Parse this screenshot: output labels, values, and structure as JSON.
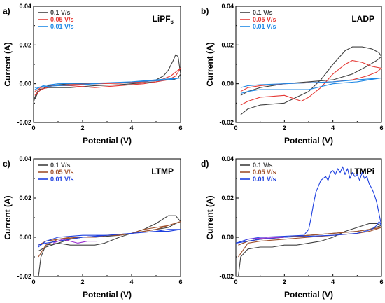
{
  "chart_data": [
    {
      "panel": "a)",
      "type": "line",
      "inset_label": "LiPF",
      "inset_label_sub": "6",
      "xlabel": "Potential (V)",
      "ylabel": "Current (A)",
      "xlim": [
        0,
        6
      ],
      "ylim": [
        -0.02,
        0.04
      ],
      "x_ticks": [
        "0",
        "2",
        "4",
        "6"
      ],
      "y_ticks": [
        "-0.02",
        "0.00",
        "0.02",
        "0.04"
      ],
      "legend_position": "top-left",
      "series": [
        {
          "name": "0.1 V/s",
          "color": "#404040",
          "x": [
            0.05,
            0.2,
            0.6,
            1.5,
            2.5,
            3.5,
            4.5,
            5.0,
            5.3,
            5.5,
            5.7,
            5.8,
            5.9,
            6.0,
            5.9,
            5.7,
            5.4,
            5.0,
            4.5,
            3.5,
            2.5,
            1.5,
            0.6,
            0.2,
            0.05,
            0.0
          ],
          "y": [
            -0.008,
            -0.004,
            -0.001,
            0.0,
            0.0,
            0.0005,
            0.001,
            0.002,
            0.004,
            0.007,
            0.012,
            0.015,
            0.014,
            0.005,
            0.003,
            0.002,
            0.002,
            0.001,
            0.0005,
            -0.0005,
            -0.001,
            -0.002,
            -0.002,
            -0.003,
            -0.007,
            -0.01
          ]
        },
        {
          "name": "0.05 V/s",
          "color": "#e53935",
          "x": [
            0.05,
            0.3,
            0.8,
            1.5,
            2.5,
            3.5,
            4.5,
            5.2,
            5.6,
            5.9,
            6.0,
            5.8,
            5.5,
            5.0,
            4.5,
            3.5,
            2.5,
            1.5,
            0.8,
            0.3,
            0.05
          ],
          "y": [
            -0.006,
            -0.003,
            -0.001,
            -0.0005,
            0.0,
            0.0002,
            0.001,
            0.002,
            0.004,
            0.007,
            0.008,
            0.004,
            0.002,
            0.001,
            0.0,
            -0.001,
            -0.002,
            -0.001,
            -0.001,
            -0.002,
            -0.004
          ]
        },
        {
          "name": "0.01 V/s",
          "color": "#1e88e5",
          "x": [
            0.05,
            0.4,
            1.0,
            2.0,
            3.0,
            4.0,
            5.0,
            5.5,
            6.0,
            5.5,
            5.0,
            4.0,
            3.0,
            2.0,
            1.0,
            0.4,
            0.05
          ],
          "y": [
            -0.003,
            -0.001,
            0.0,
            0.0002,
            0.0005,
            0.001,
            0.0015,
            0.002,
            0.003,
            0.0025,
            0.002,
            0.001,
            0.0005,
            -0.0005,
            -0.001,
            -0.0015,
            -0.002
          ]
        }
      ]
    },
    {
      "panel": "b)",
      "type": "line",
      "inset_label": "LADP",
      "inset_label_sub": "",
      "xlabel": "Potential (V)",
      "ylabel": "Current (A)",
      "xlim": [
        0,
        6
      ],
      "ylim": [
        -0.02,
        0.04
      ],
      "x_ticks": [
        "0",
        "2",
        "4",
        "6"
      ],
      "y_ticks": [
        "-0.02",
        "0.00",
        "0.02",
        "0.04"
      ],
      "legend_position": "top-left",
      "series": [
        {
          "name": "0.1 V/s",
          "color": "#404040",
          "x": [
            0.2,
            0.5,
            1.0,
            2.0,
            3.0,
            3.5,
            4.0,
            4.5,
            4.8,
            5.2,
            5.6,
            5.9,
            6.0,
            5.8,
            5.4,
            4.8,
            4.0,
            3.0,
            2.5,
            2.0,
            1.5,
            1.0,
            0.5,
            0.2
          ],
          "y": [
            -0.016,
            -0.013,
            -0.011,
            -0.01,
            -0.004,
            0.002,
            0.01,
            0.017,
            0.019,
            0.019,
            0.018,
            0.016,
            0.014,
            0.012,
            0.009,
            0.005,
            0.002,
            0.001,
            0.0005,
            0.0,
            -0.001,
            -0.002,
            -0.004,
            -0.006
          ]
        },
        {
          "name": "0.05 V/s",
          "color": "#e53935",
          "x": [
            0.2,
            0.5,
            1.0,
            2.0,
            2.7,
            3.0,
            3.5,
            4.0,
            4.5,
            4.8,
            5.2,
            5.6,
            6.0,
            5.8,
            5.4,
            4.8,
            4.0,
            3.0,
            2.0,
            1.0,
            0.5,
            0.2
          ],
          "y": [
            -0.011,
            -0.009,
            -0.007,
            -0.006,
            -0.009,
            -0.007,
            -0.002,
            0.005,
            0.01,
            0.012,
            0.011,
            0.009,
            0.008,
            0.006,
            0.004,
            0.002,
            0.001,
            0.0005,
            0.0,
            -0.001,
            -0.002,
            -0.004
          ]
        },
        {
          "name": "0.01 V/s",
          "color": "#1e88e5",
          "x": [
            0.2,
            0.5,
            1.0,
            2.0,
            3.0,
            4.0,
            5.0,
            5.5,
            6.0,
            5.5,
            5.0,
            4.0,
            3.0,
            2.0,
            1.0,
            0.5,
            0.2
          ],
          "y": [
            -0.005,
            -0.004,
            -0.003,
            -0.003,
            -0.003,
            0.0,
            0.001,
            0.002,
            0.003,
            0.0025,
            0.002,
            0.001,
            0.0005,
            0.0,
            -0.0005,
            -0.001,
            -0.002
          ]
        }
      ]
    },
    {
      "panel": "c)",
      "type": "line",
      "inset_label": "LTMP",
      "inset_label_sub": "",
      "xlabel": "Potential (V)",
      "ylabel": "Current (A)",
      "xlim": [
        0,
        6
      ],
      "ylim": [
        -0.02,
        0.04
      ],
      "x_ticks": [
        "0",
        "2",
        "4",
        "6"
      ],
      "y_ticks": [
        "-0.02",
        "0.00",
        "0.02",
        "0.04"
      ],
      "legend_position": "top-left",
      "series": [
        {
          "name": "0.1 V/s",
          "color": "#404040",
          "x": [
            0.2,
            0.3,
            0.5,
            1.0,
            1.5,
            2.0,
            2.5,
            2.9,
            3.5,
            4.0,
            4.5,
            5.0,
            5.5,
            5.8,
            6.0,
            5.8,
            5.5,
            5.0,
            4.5,
            4.0,
            3.5,
            3.0,
            2.5,
            2.0,
            1.5,
            1.0,
            0.5,
            0.2
          ],
          "y": [
            -0.02,
            -0.01,
            -0.004,
            -0.003,
            -0.004,
            -0.004,
            -0.004,
            -0.003,
            0.0,
            0.002,
            0.004,
            0.007,
            0.011,
            0.011,
            0.008,
            0.007,
            0.005,
            0.004,
            0.003,
            0.002,
            0.001,
            0.0005,
            0.0,
            0.0,
            -0.001,
            -0.003,
            -0.005,
            -0.007
          ]
        },
        {
          "name": "0.05 V/s",
          "color": "#a0522d",
          "x": [
            0.2,
            0.5,
            1.0,
            1.5,
            2.0,
            2.5,
            3.0,
            3.5,
            4.0,
            4.5,
            5.0,
            5.5,
            6.0,
            5.5,
            5.0,
            4.0,
            3.0,
            2.0,
            1.0,
            0.5,
            0.2
          ],
          "y": [
            -0.01,
            -0.004,
            -0.001,
            0.0,
            0.0,
            0.0,
            0.001,
            0.001,
            0.002,
            0.004,
            0.005,
            0.006,
            0.008,
            0.006,
            0.004,
            0.002,
            0.001,
            0.0,
            -0.001,
            -0.002,
            -0.004
          ]
        },
        {
          "name": "0.01 V/s",
          "color": "#1e40e0",
          "x": [
            0.2,
            0.5,
            1.0,
            1.5,
            2.0,
            3.0,
            4.0,
            5.0,
            5.5,
            6.0,
            5.5,
            5.0,
            4.0,
            3.0,
            2.0,
            1.0,
            0.5,
            0.2
          ],
          "y": [
            -0.005,
            -0.002,
            0.0,
            0.0005,
            0.001,
            0.001,
            0.002,
            0.003,
            0.003,
            0.004,
            0.004,
            0.003,
            0.002,
            0.001,
            0.0,
            -0.002,
            -0.003,
            -0.004
          ]
        },
        {
          "name": "",
          "color": "#9b30d0",
          "x": [
            0.8,
            1.2,
            1.8,
            2.2,
            2.6
          ],
          "y": [
            -0.003,
            -0.001,
            -0.003,
            -0.002,
            -0.002
          ]
        }
      ]
    },
    {
      "panel": "d)",
      "type": "line",
      "inset_label": "LTMPi",
      "inset_label_sub": "",
      "xlabel": "Potential (V)",
      "ylabel": "Current (A)",
      "xlim": [
        0,
        6
      ],
      "ylim": [
        -0.02,
        0.04
      ],
      "x_ticks": [
        "0",
        "2",
        "4",
        "6"
      ],
      "y_ticks": [
        "-0.02",
        "0.00",
        "0.02",
        "0.04"
      ],
      "legend_position": "top-left",
      "series": [
        {
          "name": "0.1 V/s",
          "color": "#404040",
          "x": [
            0.1,
            0.2,
            0.5,
            1.0,
            1.5,
            2.0,
            2.5,
            3.0,
            3.5,
            4.0,
            4.5,
            5.0,
            5.5,
            5.8,
            6.0,
            5.5,
            5.0,
            4.0,
            3.0,
            2.0,
            1.0,
            0.5,
            0.1
          ],
          "y": [
            -0.02,
            -0.01,
            -0.006,
            -0.005,
            -0.005,
            -0.004,
            -0.004,
            -0.003,
            -0.002,
            0.0,
            0.003,
            0.005,
            0.007,
            0.007,
            0.006,
            0.004,
            0.003,
            0.002,
            0.001,
            0.0,
            -0.001,
            -0.002,
            -0.004
          ]
        },
        {
          "name": "0.05 V/s",
          "color": "#a0522d",
          "x": [
            0.1,
            0.5,
            1.0,
            2.0,
            3.0,
            4.0,
            5.0,
            5.5,
            6.0,
            5.5,
            5.0,
            4.0,
            3.0,
            2.0,
            1.0,
            0.5,
            0.1
          ],
          "y": [
            -0.01,
            -0.003,
            -0.002,
            -0.001,
            0.0,
            0.001,
            0.002,
            0.003,
            0.005,
            0.004,
            0.003,
            0.002,
            0.001,
            0.0,
            -0.001,
            -0.002,
            -0.004
          ]
        },
        {
          "name": "0.01 V/s",
          "color": "#1e40e0",
          "x": [
            0.0,
            0.5,
            1.0,
            2.0,
            2.8,
            3.0,
            3.1,
            3.2,
            3.3,
            3.4,
            3.5,
            3.6,
            3.7,
            3.8,
            3.9,
            4.0,
            4.1,
            4.2,
            4.3,
            4.4,
            4.5,
            4.6,
            4.7,
            4.8,
            4.9,
            5.0,
            5.1,
            5.2,
            5.3,
            5.4,
            5.5,
            5.6,
            5.7,
            5.8,
            5.9,
            6.0,
            5.9,
            5.8,
            5.6,
            5.3,
            5.0,
            4.0,
            3.0,
            2.0,
            1.0,
            0.5,
            0.0
          ],
          "y": [
            -0.003,
            -0.001,
            0.0,
            0.0005,
            0.001,
            0.004,
            0.01,
            0.017,
            0.023,
            0.026,
            0.029,
            0.03,
            0.031,
            0.029,
            0.033,
            0.034,
            0.032,
            0.035,
            0.033,
            0.036,
            0.032,
            0.035,
            0.03,
            0.033,
            0.031,
            0.032,
            0.029,
            0.033,
            0.03,
            0.031,
            0.027,
            0.025,
            0.022,
            0.018,
            0.012,
            0.006,
            0.008,
            0.006,
            0.004,
            0.003,
            0.002,
            0.001,
            0.0005,
            0.0,
            -0.001,
            -0.002,
            -0.003
          ]
        },
        {
          "name": "",
          "color": "#9b30d0",
          "x": [
            0.4,
            1.0,
            2.0
          ],
          "y": [
            -0.001,
            -0.0005,
            0.0
          ]
        }
      ]
    }
  ]
}
